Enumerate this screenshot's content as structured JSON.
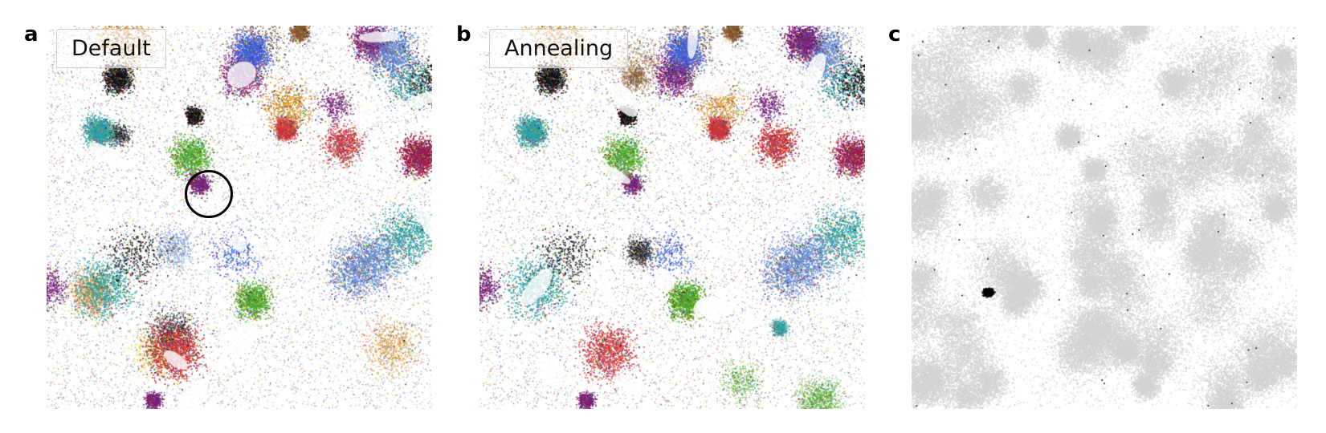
{
  "panels": [
    {
      "letter": "a",
      "label": "Default"
    },
    {
      "letter": "b",
      "label": "Annealing"
    },
    {
      "letter": "c",
      "label": ""
    }
  ],
  "palette": [
    "#3b5ee8",
    "#4caf1f",
    "#f5d90a",
    "#1f6fb3",
    "#a0184a",
    "#111111",
    "#e0962a",
    "#2aa7a7",
    "#8a5a2b",
    "#d6333a",
    "#6a8fd8",
    "#7c1d7c"
  ],
  "highlight_color": "#000000",
  "background_point_color": "#d3d3d3"
}
